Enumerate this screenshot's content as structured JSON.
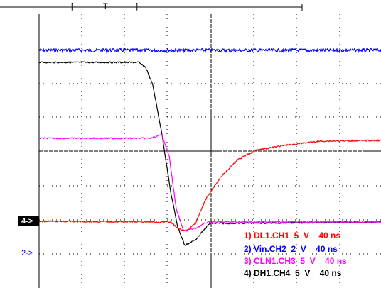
{
  "trigger": {
    "left": "[",
    "marker": "T",
    "right": "]"
  },
  "markers": [
    "4->",
    "2->"
  ],
  "legend": [
    "1) DL1.CH1  5  V    40 ns",
    "2) Vin.CH2  2  V    40 ns",
    "3) CLN1.CH3  5  V    40 ns",
    "4) DH1.CH4  5  V    40 ns"
  ]
}
